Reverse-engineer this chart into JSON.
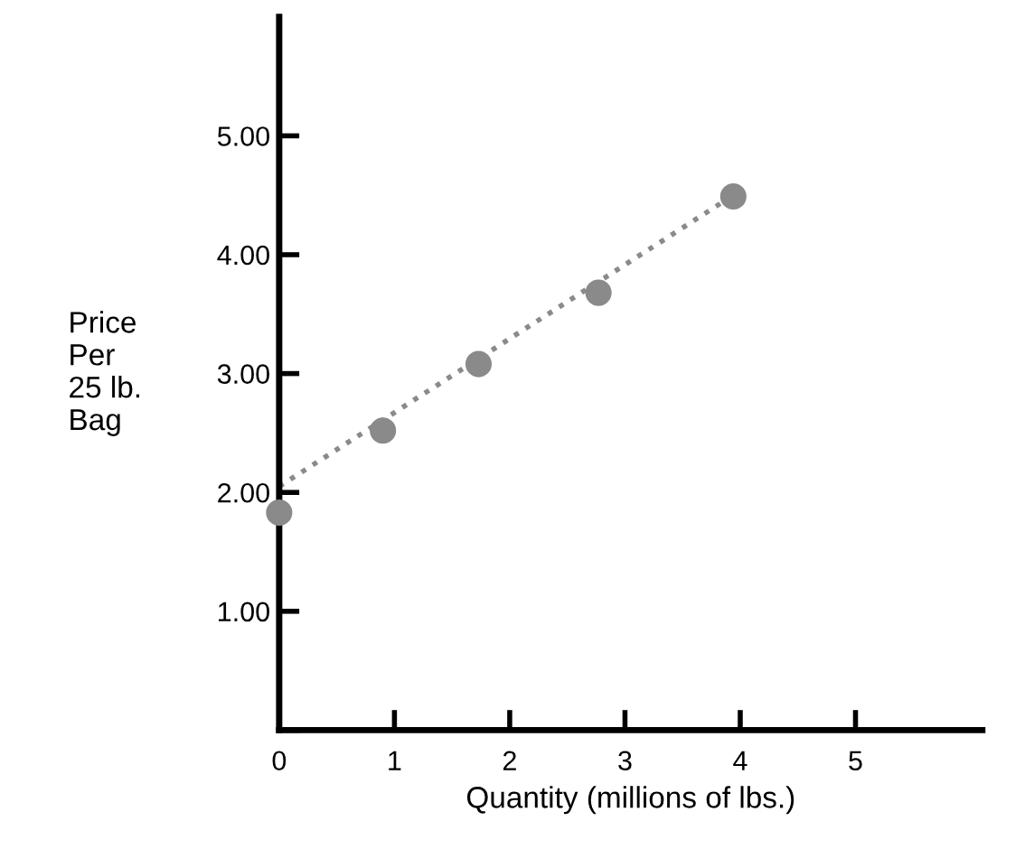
{
  "chart_data": {
    "type": "scatter",
    "xlabel": "Quantity (millions of lbs.)",
    "ylabel": "Price\nPer\n25 lb.\nBag",
    "series": [
      {
        "color": "#8a8a8a",
        "x": [
          0,
          0.9,
          1.73,
          2.77,
          3.94
        ],
        "values": [
          1.83,
          2.52,
          3.08,
          3.68,
          4.49
        ],
        "marker": "circle"
      },
      {
        "type": "line",
        "color": "#8a8a8a",
        "x": [
          0,
          3.94
        ],
        "values": [
          2.05,
          4.5
        ],
        "line_style": "dotted",
        "marker": "none"
      }
    ],
    "xlim": [
      0,
      6.1
    ],
    "ylim": [
      0,
      6
    ],
    "xticks": [
      0,
      1,
      2,
      3,
      4,
      5
    ],
    "yticks": [
      {
        "value": 0,
        "label": null
      },
      {
        "value": 1,
        "label": "1.00"
      },
      {
        "value": 2,
        "label": "2.00"
      },
      {
        "value": 3,
        "label": "3.00"
      },
      {
        "value": 4,
        "label": "4.00"
      },
      {
        "value": 5,
        "label": "5.00"
      }
    ],
    "grid": false,
    "legend": false
  }
}
